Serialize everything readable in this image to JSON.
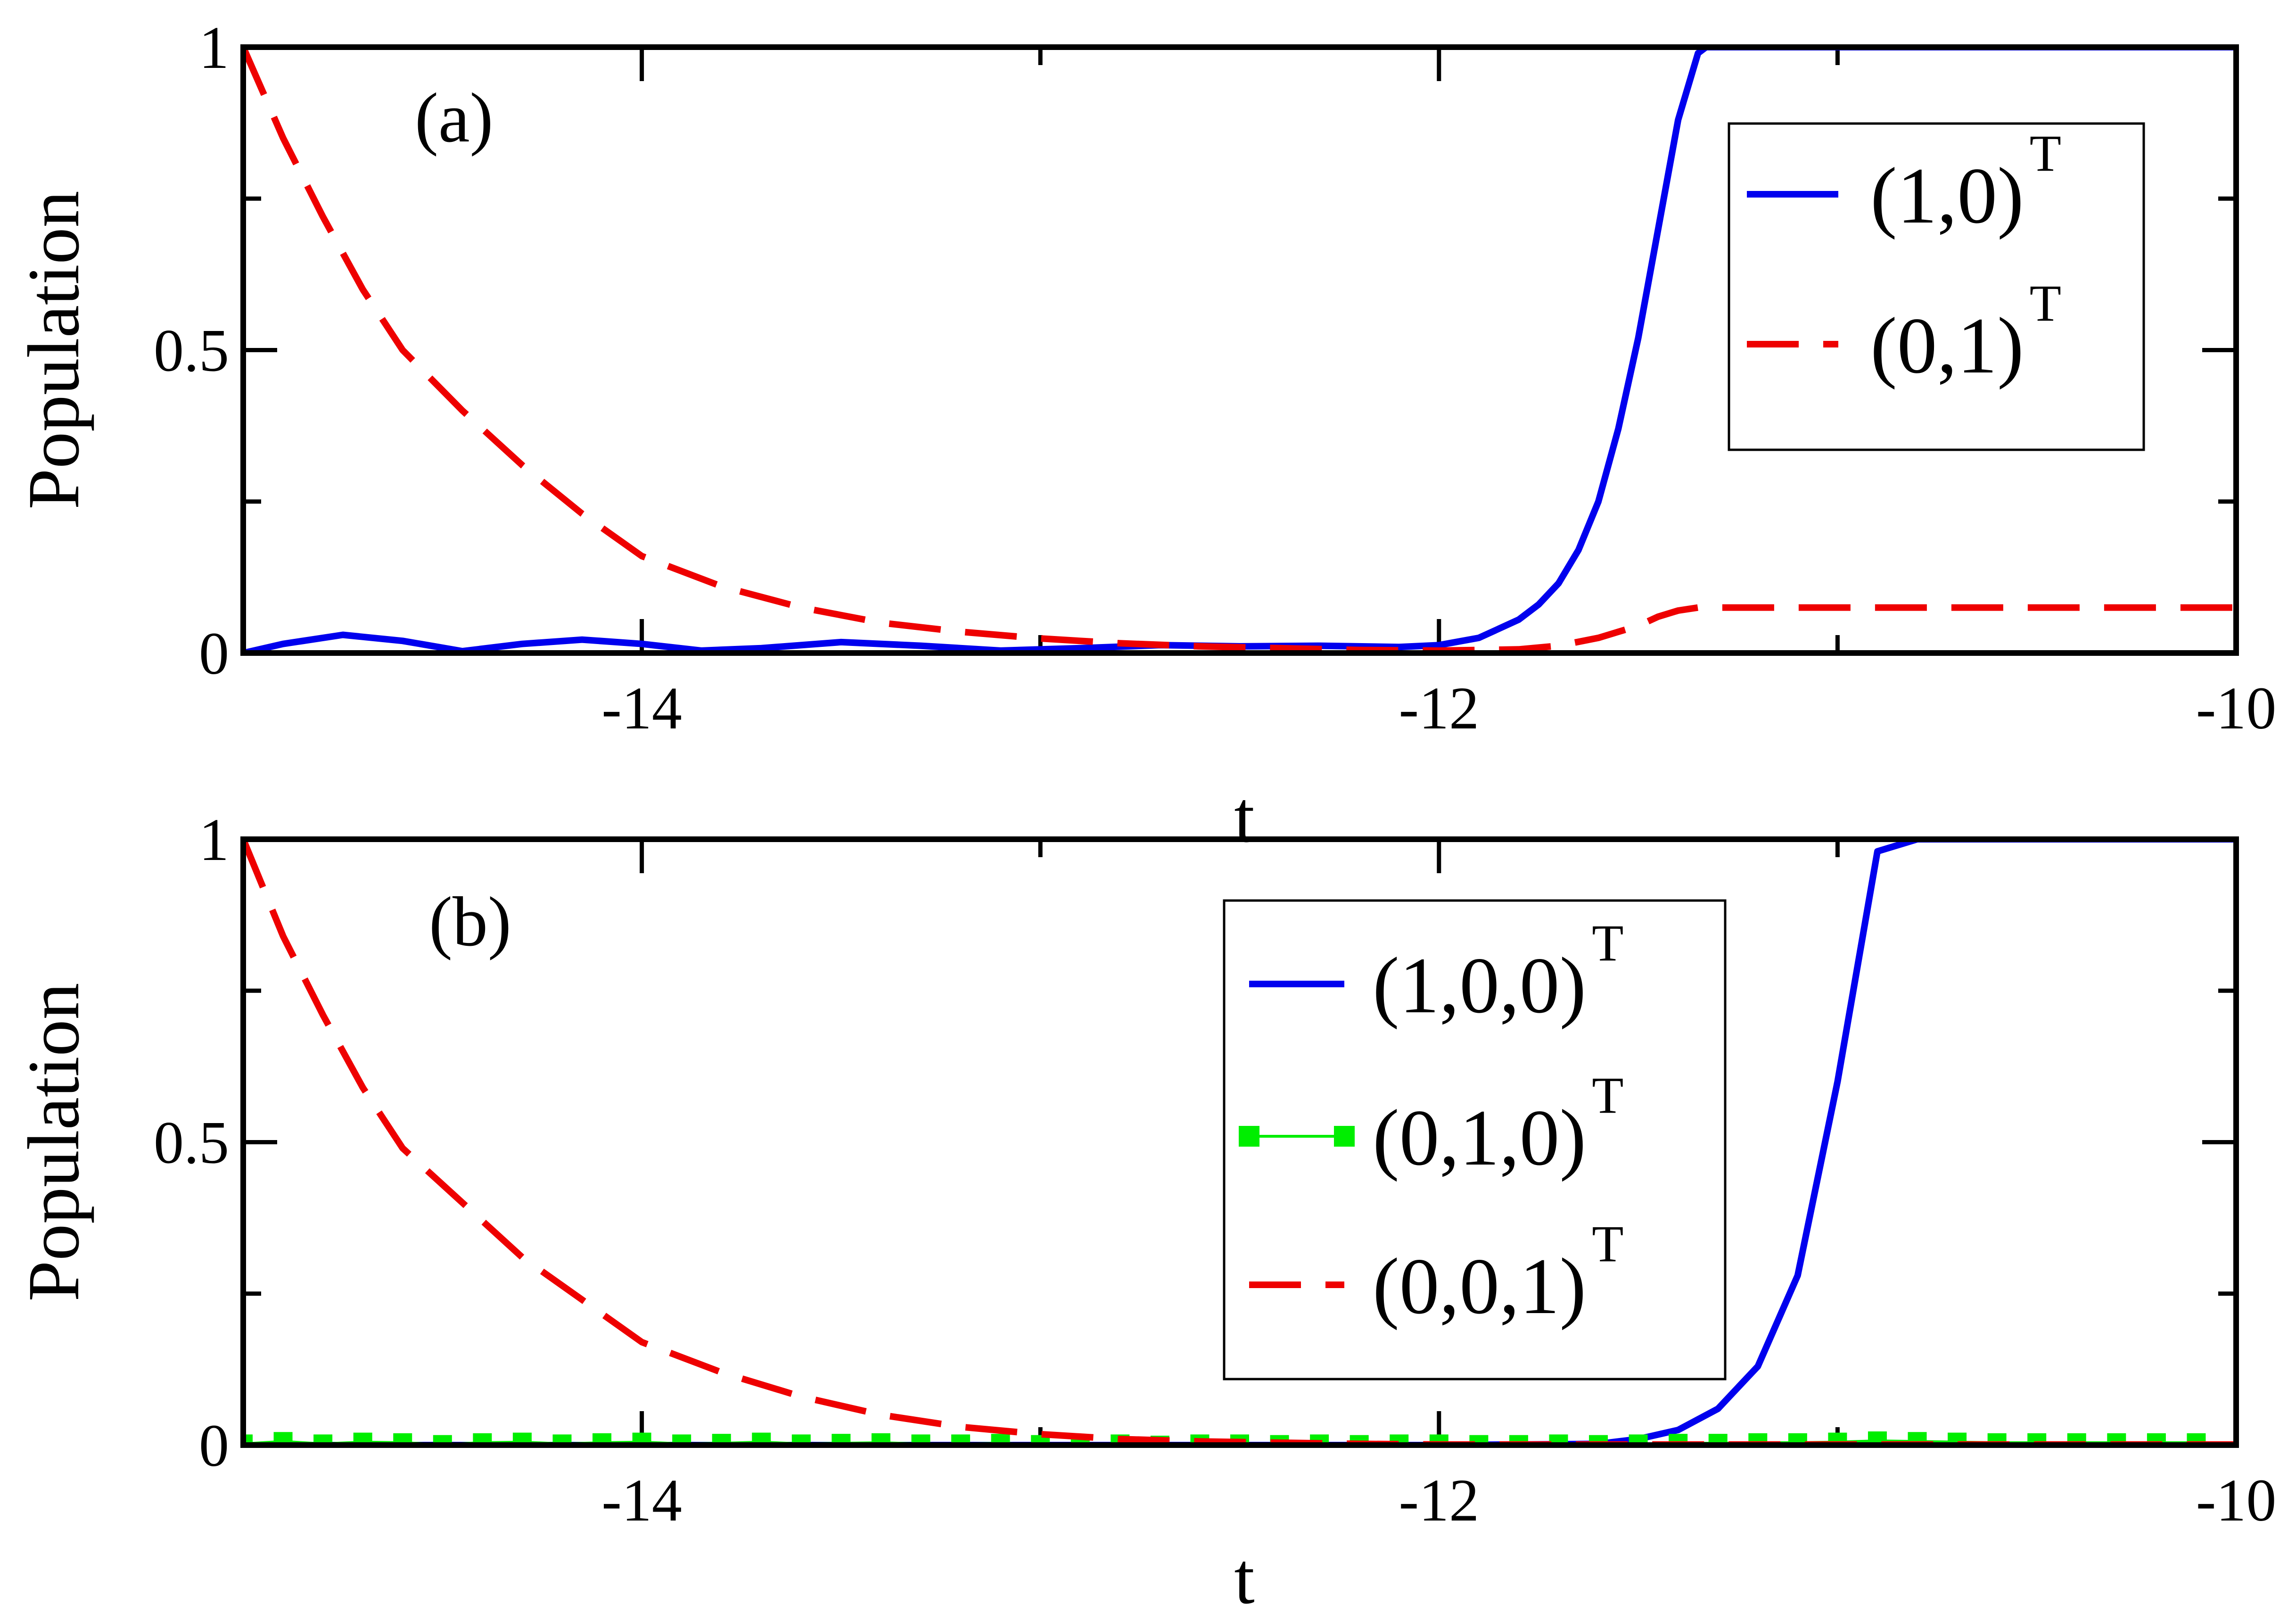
{
  "chart_data": [
    {
      "type": "line",
      "panel_label": "(a)",
      "xlabel": "t",
      "ylabel": "Population",
      "xlim": [
        -15,
        -10
      ],
      "ylim": [
        0,
        1
      ],
      "x_ticks": [
        -14,
        -12,
        -10
      ],
      "x_tick_labels": [
        "-14",
        "-12",
        "-10"
      ],
      "y_ticks": [
        0,
        0.5,
        1
      ],
      "y_tick_labels": [
        "0",
        "0.5",
        "1"
      ],
      "legend_position": "top-right",
      "series": [
        {
          "name": "(1,0)",
          "name_superscript": "T",
          "color": "#0000ee",
          "style": "solid",
          "x": [
            -15.0,
            -14.9,
            -14.75,
            -14.6,
            -14.45,
            -14.3,
            -14.15,
            -14.0,
            -13.85,
            -13.7,
            -13.5,
            -13.3,
            -13.1,
            -12.9,
            -12.7,
            -12.5,
            -12.3,
            -12.1,
            -12.0,
            -11.9,
            -11.8,
            -11.75,
            -11.7,
            -11.65,
            -11.6,
            -11.55,
            -11.5,
            -11.45,
            -11.4,
            -11.35,
            -11.33,
            -11.3,
            -11.0,
            -10.5,
            -10.0
          ],
          "y": [
            0.0,
            0.015,
            0.03,
            0.02,
            0.003,
            0.015,
            0.022,
            0.015,
            0.004,
            0.008,
            0.018,
            0.012,
            0.004,
            0.008,
            0.013,
            0.011,
            0.012,
            0.01,
            0.013,
            0.025,
            0.055,
            0.08,
            0.115,
            0.17,
            0.25,
            0.37,
            0.52,
            0.7,
            0.88,
            0.99,
            1.0,
            1.0,
            1.0,
            1.0,
            1.0
          ]
        },
        {
          "name": "(0,1)",
          "name_superscript": "T",
          "color": "#ee0000",
          "style": "dashed",
          "x": [
            -15.0,
            -14.9,
            -14.8,
            -14.7,
            -14.6,
            -14.45,
            -14.3,
            -14.15,
            -14.0,
            -13.8,
            -13.6,
            -13.4,
            -13.2,
            -13.0,
            -12.8,
            -12.6,
            -12.4,
            -12.2,
            -12.0,
            -11.8,
            -11.7,
            -11.6,
            -11.5,
            -11.45,
            -11.4,
            -11.35,
            -11.0,
            -10.5,
            -10.0
          ],
          "y": [
            1.0,
            0.85,
            0.72,
            0.6,
            0.5,
            0.4,
            0.31,
            0.23,
            0.16,
            0.11,
            0.075,
            0.05,
            0.035,
            0.024,
            0.016,
            0.011,
            0.008,
            0.005,
            0.004,
            0.006,
            0.012,
            0.025,
            0.045,
            0.06,
            0.07,
            0.075,
            0.075,
            0.075,
            0.075
          ]
        }
      ]
    },
    {
      "type": "line",
      "panel_label": "(b)",
      "xlabel": "t",
      "ylabel": "Population",
      "xlim": [
        -15,
        -10
      ],
      "ylim": [
        0,
        1
      ],
      "x_ticks": [
        -14,
        -12,
        -10
      ],
      "x_tick_labels": [
        "-14",
        "-12",
        "-10"
      ],
      "y_ticks": [
        0,
        0.5,
        1
      ],
      "y_tick_labels": [
        "0",
        "0.5",
        "1"
      ],
      "legend_position": "top-center",
      "series": [
        {
          "name": "(1,0,0)",
          "name_superscript": "T",
          "color": "#0000ee",
          "style": "solid",
          "x": [
            -15.0,
            -12.0,
            -11.6,
            -11.5,
            -11.4,
            -11.3,
            -11.2,
            -11.1,
            -11.0,
            -10.9,
            -10.8,
            -10.7,
            -10.5,
            -10.0
          ],
          "y": [
            0.0,
            0.0,
            0.002,
            0.01,
            0.025,
            0.06,
            0.13,
            0.28,
            0.6,
            0.98,
            1.0,
            1.0,
            1.0,
            1.0
          ]
        },
        {
          "name": "(0,1,0)",
          "name_superscript": "T",
          "color": "#00ee00",
          "style": "square-markers",
          "x": [
            -15.0,
            -14.9,
            -14.8,
            -14.7,
            -14.6,
            -14.5,
            -14.4,
            -14.3,
            -14.2,
            -14.1,
            -14.0,
            -13.9,
            -13.8,
            -13.7,
            -13.6,
            -13.5,
            -13.4,
            -13.3,
            -13.2,
            -13.1,
            -13.0,
            -12.9,
            -12.8,
            -12.7,
            -12.6,
            -12.5,
            -12.4,
            -12.3,
            -12.2,
            -12.1,
            -12.0,
            -11.9,
            -11.8,
            -11.7,
            -11.6,
            -11.5,
            -11.4,
            -11.3,
            -11.2,
            -11.1,
            -11.0,
            -10.9,
            -10.8,
            -10.7,
            -10.6,
            -10.5,
            -10.4,
            -10.3,
            -10.2,
            -10.1
          ],
          "y": [
            0.002,
            0.006,
            0.002,
            0.005,
            0.004,
            0.001,
            0.004,
            0.005,
            0.002,
            0.004,
            0.005,
            0.002,
            0.003,
            0.005,
            0.002,
            0.003,
            0.004,
            0.002,
            0.002,
            0.003,
            0.001,
            0.002,
            0.002,
            0.0,
            0.002,
            0.002,
            0.001,
            0.002,
            0.001,
            0.002,
            0.002,
            0.001,
            0.001,
            0.002,
            0.001,
            0.002,
            0.003,
            0.003,
            0.004,
            0.004,
            0.005,
            0.007,
            0.006,
            0.005,
            0.004,
            0.004,
            0.004,
            0.004,
            0.004,
            0.004
          ]
        },
        {
          "name": "(0,0,1)",
          "name_superscript": "T",
          "color": "#ee0000",
          "style": "dashed",
          "x": [
            -15.0,
            -14.9,
            -14.8,
            -14.7,
            -14.6,
            -14.45,
            -14.3,
            -14.15,
            -14.0,
            -13.8,
            -13.6,
            -13.4,
            -13.2,
            -13.0,
            -12.8,
            -12.6,
            -12.4,
            -12.2,
            -12.0,
            -11.5,
            -11.0,
            -10.5,
            -10.0
          ],
          "y": [
            1.0,
            0.84,
            0.71,
            0.59,
            0.49,
            0.4,
            0.31,
            0.24,
            0.17,
            0.12,
            0.08,
            0.05,
            0.03,
            0.018,
            0.01,
            0.006,
            0.004,
            0.002,
            0.001,
            0.001,
            0.001,
            0.001,
            0.001
          ]
        }
      ]
    }
  ]
}
